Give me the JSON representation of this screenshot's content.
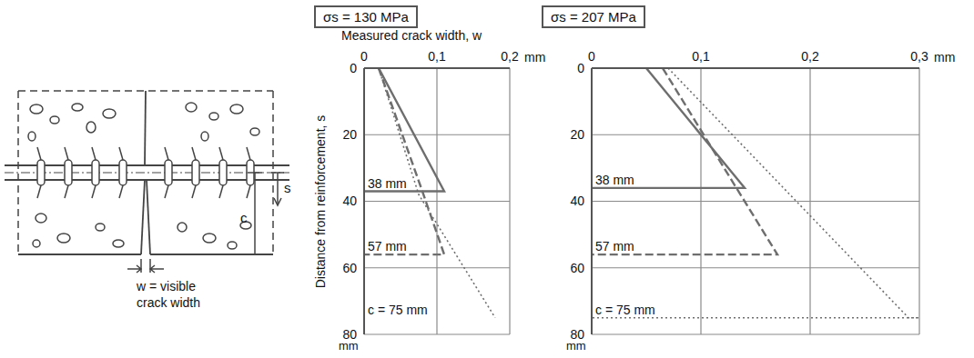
{
  "diagram": {
    "crack_width_label": "w = visible crack width",
    "cover_label": "c",
    "distance_label": "s"
  },
  "chart_data": [
    {
      "type": "line",
      "title": "σs = 130 MPa",
      "xlabel": "Measured crack width, w",
      "ylabel": "Distance from reinforcement, s",
      "x_unit": "mm",
      "y_unit": "mm",
      "xlim": [
        0,
        0.2
      ],
      "xticks": [
        0,
        {
          "value": 0.1,
          "label": "0,1"
        },
        {
          "value": 0.2,
          "label": "0,2"
        }
      ],
      "ylim": [
        0,
        80
      ],
      "yticks": [
        0,
        20,
        40,
        60,
        80
      ],
      "grid": true,
      "series": [
        {
          "name": "38 mm",
          "color": "#6e6e6e",
          "line_style": "solid",
          "x": [
            0.02,
            0.11,
            0
          ],
          "values": [
            0,
            37,
            37
          ]
        },
        {
          "name": "57 mm",
          "color": "#6e6e6e",
          "line_style": "dashed",
          "x": [
            0.02,
            0.08,
            0.11,
            0
          ],
          "values": [
            0,
            37,
            56,
            56
          ]
        },
        {
          "name": "c = 75 mm",
          "color": "#6e6e6e",
          "line_style": "dotted",
          "x": [
            0.02,
            0.075,
            0.18
          ],
          "values": [
            0,
            38,
            75
          ]
        }
      ]
    },
    {
      "type": "line",
      "title": "σs = 207 MPa",
      "x_unit": "mm",
      "y_unit": "mm",
      "xlim": [
        0,
        0.3
      ],
      "xticks": [
        0,
        {
          "value": 0.1,
          "label": "0,1"
        },
        {
          "value": 0.2,
          "label": "0,2"
        },
        {
          "value": 0.3,
          "label": "0,3"
        }
      ],
      "ylim": [
        0,
        80
      ],
      "yticks": [
        0,
        20,
        40,
        60,
        80
      ],
      "grid": true,
      "series": [
        {
          "name": "38 mm",
          "color": "#6e6e6e",
          "line_style": "solid",
          "x": [
            0.05,
            0.14,
            0
          ],
          "values": [
            0,
            36,
            36
          ]
        },
        {
          "name": "57 mm",
          "color": "#6e6e6e",
          "line_style": "dashed",
          "x": [
            0.065,
            0.17,
            0
          ],
          "values": [
            0,
            56,
            56
          ]
        },
        {
          "name": "c = 75 mm",
          "color": "#6e6e6e",
          "line_style": "dotted",
          "x": [
            0.07,
            0.29,
            0.3,
            0
          ],
          "values": [
            0,
            75,
            75,
            75
          ]
        }
      ]
    }
  ]
}
